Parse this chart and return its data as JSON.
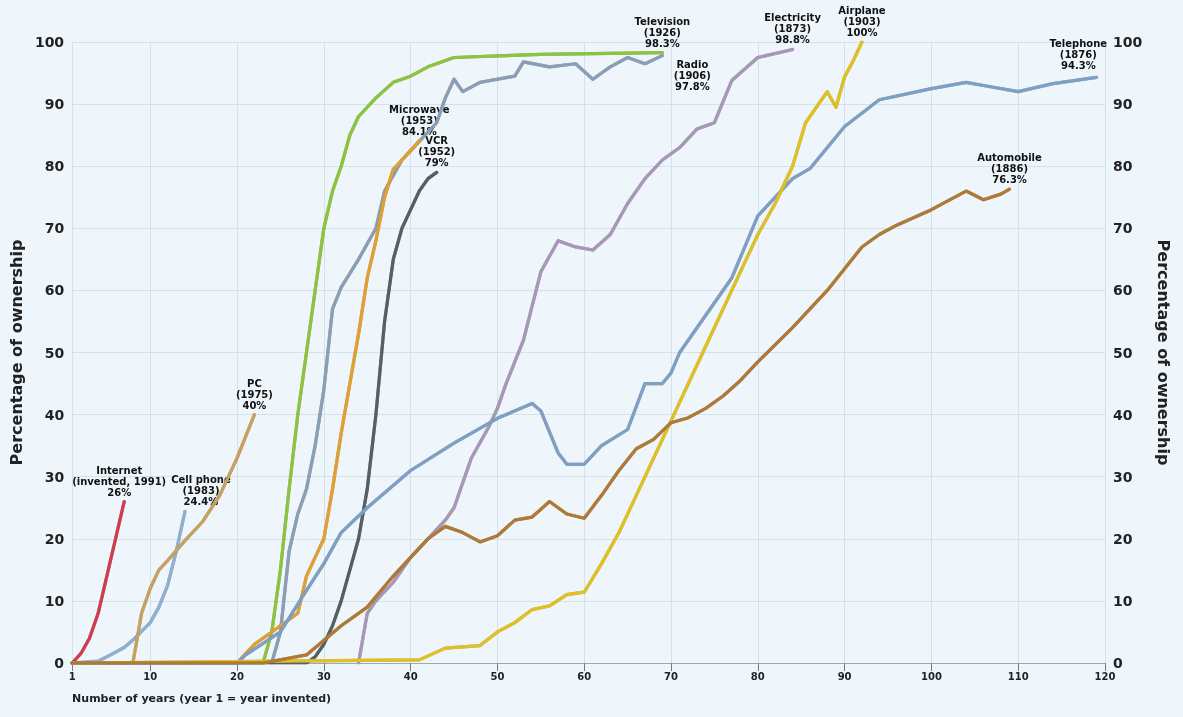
{
  "chart_data": {
    "type": "line",
    "xlabel": "Number of years (year 1 = year invented)",
    "ylabel": "Percentage of ownership",
    "y2label": "Percentage of ownership",
    "xlim": [
      1,
      120
    ],
    "xticks": [
      1,
      10,
      20,
      30,
      40,
      50,
      60,
      70,
      80,
      90,
      100,
      110,
      120
    ],
    "ylim": [
      0,
      100
    ],
    "yticks": [
      0,
      10,
      20,
      30,
      40,
      50,
      60,
      70,
      80,
      90,
      100
    ],
    "y2lim": [
      0,
      100
    ],
    "y2ticks": [
      0,
      10,
      20,
      30,
      40,
      50,
      60,
      70,
      80,
      90,
      100
    ],
    "grid": true,
    "marker": "none",
    "line_style": "solid",
    "series": [
      {
        "color": "#d23a4f",
        "x": [
          1,
          2,
          3,
          4,
          5,
          6,
          7
        ],
        "values": [
          0,
          1.5,
          4,
          8,
          14,
          20,
          26
        ]
      },
      {
        "color": "#8fb0d0",
        "x": [
          1,
          4,
          5,
          7,
          8,
          10,
          11,
          12,
          13,
          14
        ],
        "values": [
          0,
          0.3,
          1,
          2.5,
          3.7,
          6.5,
          9,
          12.5,
          18,
          24.4
        ]
      },
      {
        "color": "#c8a060",
        "x": [
          1,
          8,
          9,
          10,
          11,
          12,
          14,
          16,
          18,
          20,
          22
        ],
        "values": [
          0,
          0,
          8,
          12,
          15,
          16.5,
          19.7,
          22.7,
          27,
          33,
          40
        ]
      },
      {
        "color": "#8cc43c",
        "x": [
          1,
          23,
          24,
          25,
          26,
          27,
          28,
          29,
          30,
          31,
          32,
          33,
          34,
          36,
          38,
          40,
          42,
          45,
          55,
          69
        ],
        "values": [
          0,
          0,
          5,
          15,
          28,
          40,
          50,
          60,
          70,
          76,
          80,
          85,
          88,
          91,
          93.5,
          94.5,
          96,
          97.5,
          98,
          98.3
        ]
      },
      {
        "color": "#8a9fb5",
        "x": [
          24,
          25,
          26,
          27,
          28,
          29,
          30,
          31,
          32,
          34,
          36,
          37,
          39,
          41,
          43,
          44,
          45,
          46,
          48,
          52,
          53,
          56,
          59,
          61,
          62,
          63,
          65,
          67,
          69
        ],
        "values": [
          0,
          5,
          18,
          24,
          28,
          35,
          44,
          57,
          60.5,
          65,
          70,
          76,
          81,
          84,
          87,
          91,
          94,
          92,
          93.5,
          94.5,
          96.8,
          96,
          96.5,
          94,
          95,
          96,
          97.5,
          96.5,
          97.8
        ]
      },
      {
        "color": "#e0a030",
        "x": [
          1,
          20,
          21,
          22,
          24,
          26,
          27,
          28,
          29,
          30,
          31,
          32,
          33,
          34,
          35,
          36,
          37,
          38,
          39,
          40,
          41
        ],
        "values": [
          0,
          0,
          1.5,
          3,
          5,
          7,
          8,
          14,
          17,
          20,
          28,
          37,
          45,
          53,
          62,
          68,
          75,
          79.5,
          81,
          82.5,
          84.1
        ]
      },
      {
        "color": "#555e66",
        "x": [
          1,
          28,
          29,
          30,
          31,
          32,
          33,
          34,
          35,
          36,
          37,
          38,
          39,
          40,
          41,
          42,
          43
        ],
        "values": [
          0,
          0,
          1,
          3,
          6,
          10,
          15,
          20,
          28,
          40,
          55,
          65,
          70,
          73,
          76,
          78,
          79
        ]
      },
      {
        "color": "#a898b8",
        "x": [
          34,
          35,
          36,
          38,
          40,
          42,
          44,
          45,
          47,
          49,
          50,
          51,
          53,
          55,
          57,
          59,
          61,
          63,
          65,
          67,
          69,
          71,
          73,
          75,
          77,
          80,
          84
        ],
        "values": [
          0,
          8,
          10,
          13,
          17,
          20,
          23,
          25,
          33,
          38,
          41,
          45,
          52,
          63,
          68,
          67,
          66.5,
          69,
          74,
          78,
          81,
          83,
          86,
          87,
          93.8,
          97.5,
          98.8
        ]
      },
      {
        "color": "#7fa0c4",
        "x": [
          1,
          20,
          21,
          25,
          28,
          30,
          32,
          35,
          40,
          45,
          50,
          54,
          55,
          57,
          58,
          60,
          62,
          65,
          67,
          69,
          70,
          71,
          74,
          77,
          80,
          84,
          86,
          90,
          94,
          100,
          104,
          106,
          110,
          114,
          119
        ],
        "values": [
          0,
          0,
          1.3,
          5,
          11.7,
          16,
          21,
          25,
          31,
          35.4,
          39.4,
          41.8,
          40.6,
          33.8,
          32,
          32,
          35,
          37.6,
          45,
          45,
          46.7,
          50,
          56,
          62,
          72,
          78,
          79.6,
          86.4,
          90.7,
          92.5,
          93.5,
          93,
          92,
          93.3,
          94.3
        ]
      },
      {
        "color": "#e0c020",
        "x": [
          1,
          41,
          44,
          48,
          50,
          52,
          54,
          56,
          58,
          60,
          62,
          64,
          66,
          68,
          70,
          72,
          74,
          77,
          80,
          82,
          84,
          85.5,
          88,
          89,
          90,
          91,
          92
        ],
        "values": [
          0,
          0.5,
          2.4,
          2.8,
          5,
          6.5,
          8.6,
          9.2,
          11,
          11.4,
          16,
          21,
          27,
          33,
          39,
          45,
          51,
          60,
          69,
          74,
          80,
          87,
          92,
          89.5,
          94.4,
          97,
          100
        ]
      },
      {
        "color": "#b07a35",
        "x": [
          1,
          23,
          28,
          32,
          35,
          38,
          40,
          42,
          44,
          46,
          48,
          50,
          52,
          54,
          56,
          58,
          60,
          62,
          64,
          66,
          68,
          70,
          72,
          74,
          76,
          78,
          80,
          84,
          88,
          90,
          92,
          94,
          96,
          100,
          104,
          106,
          108,
          109
        ],
        "values": [
          0,
          0,
          1.3,
          6,
          9,
          14,
          17,
          20,
          22,
          21,
          19.5,
          20.5,
          23,
          23.5,
          26,
          24,
          23.3,
          27,
          31,
          34.5,
          36,
          38.7,
          39.5,
          41,
          43,
          45.5,
          48.5,
          54,
          60,
          63.5,
          67,
          69,
          70.5,
          73,
          76,
          74.6,
          75.5,
          76.3
        ]
      }
    ],
    "annotations": [
      {
        "text": "Internet\n(invented, 1991)\n26%",
        "x": 7,
        "y": 26
      },
      {
        "text": "Cell phone\n(1983)\n24.4%",
        "x": 14,
        "y": 24.4
      },
      {
        "text": "PC\n(1975)\n40%",
        "x": 22,
        "y": 40
      },
      {
        "text": "Television\n(1926)\n98.3%",
        "x": 69,
        "y": 98.3
      },
      {
        "text": "Radio\n(1906)\n97.8%",
        "x": 69,
        "y": 97.8
      },
      {
        "text": "Microwave\n(1953)\n84.1%",
        "x": 41,
        "y": 84.1
      },
      {
        "text": "VCR\n(1952)\n79%",
        "x": 43,
        "y": 79
      },
      {
        "text": "Electricity\n(1873)\n98.8%",
        "x": 84,
        "y": 98.8
      },
      {
        "text": "Telephone\n(1876)\n94.3%",
        "x": 119,
        "y": 94.3
      },
      {
        "text": "Airplane\n(1903)\n100%",
        "x": 92,
        "y": 100
      },
      {
        "text": "Automobile\n(1886)\n76.3%",
        "x": 109,
        "y": 76.3
      }
    ]
  }
}
